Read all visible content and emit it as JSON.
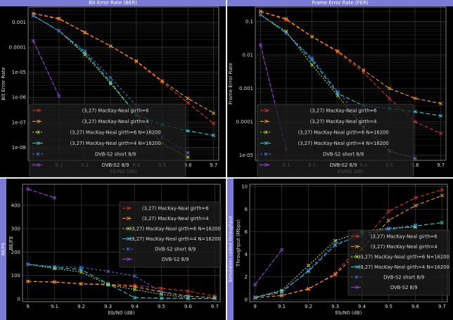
{
  "panels": [
    {
      "title": "Bit Error Rate (BER)",
      "side_label": ""
    },
    {
      "title": "Frame Error Rate (FER)",
      "side_label": ""
    },
    {
      "title": "",
      "side_label": "BE/FE"
    },
    {
      "title": "",
      "side_label": "Simulation coded throughput"
    }
  ],
  "colors": {
    "panel_bg": "#000000",
    "title_bar": "#7b7bd6",
    "grid": "#3a3a3a",
    "text": "#d8d8d8"
  },
  "chart_data": [
    {
      "type": "line",
      "title": "Bit Error Rate (BER)",
      "xlabel": "Eb/N0 (dB)",
      "ylabel": "Bit Error Rate",
      "yscale": "log",
      "xlim": [
        8.98,
        9.72
      ],
      "ylim": [
        3e-09,
        0.004
      ],
      "xticks": [
        9,
        9.1,
        9.2,
        9.3,
        9.4,
        9.5,
        9.6,
        9.7
      ],
      "xtick_labels": [
        "9",
        "9.1",
        "9.2",
        "9.3",
        "9.4",
        "9.5",
        "9.6",
        "9.7"
      ],
      "yticks": [
        1e-08,
        1e-07,
        1e-06,
        1e-05,
        0.0001,
        0.001
      ],
      "ytick_labels": [
        "1e-08",
        "1e-07",
        "1e-06",
        "1e-05",
        "0.0001",
        "0.001"
      ],
      "grid": true,
      "legend_position": "bottom-center",
      "series": [
        {
          "name": "(3,27) MacKay-Neal girth=6",
          "color": "#e0302a",
          "x": [
            9,
            9.1,
            9.2,
            9.3,
            9.4,
            9.5,
            9.6,
            9.7
          ],
          "y": [
            0.0022,
            0.0013,
            0.0004,
            0.00011,
            2.6e-05,
            4e-06,
            6e-07,
            9e-08
          ]
        },
        {
          "name": "(3,27) MacKay-Neal girth=4",
          "color": "#f0a020",
          "x": [
            9,
            9.1,
            9.2,
            9.3,
            9.4,
            9.5,
            9.6,
            9.7
          ],
          "y": [
            0.0022,
            0.0014,
            0.00038,
            0.00011,
            2.8e-05,
            4.5e-06,
            9e-07,
            2.3e-07
          ]
        },
        {
          "name": "(3,27) MacKay-Neal girth=6 N=16200",
          "color": "#b8e030",
          "x": [
            9,
            9.1,
            9.2,
            9.3,
            9.4,
            9.5,
            9.6
          ],
          "y": [
            0.0018,
            0.00045,
            5e-05,
            3.5e-06,
            2e-07,
            1.4e-08,
            4e-09
          ]
        },
        {
          "name": "(3,27) MacKay-Neal girth=4 N=16200",
          "color": "#20d0d0",
          "x": [
            9,
            9.1,
            9.2,
            9.3,
            9.4,
            9.5,
            9.6,
            9.7
          ],
          "y": [
            0.0018,
            0.00045,
            6e-05,
            4e-06,
            2e-07,
            8e-08,
            4.5e-08,
            3e-08
          ]
        },
        {
          "name": "DVB-S2 short 8/9",
          "color": "#4a6ee0",
          "x": [
            9,
            9.1,
            9.2,
            9.3,
            9.4,
            9.5,
            9.6
          ],
          "y": [
            0.0018,
            0.00045,
            7e-05,
            6e-06,
            4.5e-07,
            2.5e-08,
            6e-09
          ]
        },
        {
          "name": "DVB-S2 8/9",
          "color": "#9a40e0",
          "x": [
            9,
            9.1
          ],
          "y": [
            0.00018,
            1.1e-06
          ]
        }
      ]
    },
    {
      "type": "line",
      "title": "Frame Error Rate (FER)",
      "xlabel": "Eb/N0 (dB)",
      "ylabel": "Frame Error Rate",
      "yscale": "log",
      "xlim": [
        8.98,
        9.72
      ],
      "ylim": [
        7e-06,
        0.27
      ],
      "xticks": [
        9,
        9.1,
        9.2,
        9.3,
        9.4,
        9.5,
        9.6,
        9.7
      ],
      "xtick_labels": [
        "9",
        "9.1",
        "9.2",
        "9.3",
        "9.4",
        "9.5",
        "9.6",
        "9.7"
      ],
      "yticks": [
        1e-05,
        0.0001,
        0.001,
        0.01,
        0.1
      ],
      "ytick_labels": [
        "1e-05",
        "0.0001",
        "0.001",
        "0.01",
        "0.1"
      ],
      "grid": true,
      "legend_position": "bottom-center",
      "series": [
        {
          "name": "(3,27) MacKay-Neal girth=6",
          "color": "#e0302a",
          "x": [
            9,
            9.1,
            9.2,
            9.3,
            9.4,
            9.5,
            9.6,
            9.7
          ],
          "y": [
            0.2,
            0.11,
            0.035,
            0.012,
            0.003,
            0.0005,
            0.0001,
            4.5e-05
          ]
        },
        {
          "name": "(3,27) MacKay-Neal girth=4",
          "color": "#f0a020",
          "x": [
            9,
            9.1,
            9.2,
            9.3,
            9.4,
            9.5,
            9.6,
            9.7
          ],
          "y": [
            0.2,
            0.12,
            0.035,
            0.013,
            0.0035,
            0.001,
            0.0005,
            0.00035
          ]
        },
        {
          "name": "(3,27) MacKay-Neal girth=6 N=16200",
          "color": "#b8e030",
          "x": [
            9,
            9.1,
            9.2,
            9.3,
            9.4,
            9.5,
            9.6
          ],
          "y": [
            0.16,
            0.05,
            0.005,
            0.0006,
            7e-05,
            1.3e-05,
            8e-06
          ]
        },
        {
          "name": "(3,27) MacKay-Neal girth=4 N=16200",
          "color": "#20d0d0",
          "x": [
            9,
            9.1,
            9.2,
            9.3,
            9.4,
            9.5,
            9.6,
            9.7
          ],
          "y": [
            0.16,
            0.045,
            0.007,
            0.0007,
            0.0003,
            0.00025,
            0.0002,
            0.00015
          ]
        },
        {
          "name": "DVB-S2 short 8/9",
          "color": "#4a6ee0",
          "x": [
            9,
            9.1,
            9.2,
            9.3,
            9.4,
            9.5,
            9.6
          ],
          "y": [
            0.16,
            0.045,
            0.008,
            0.0008,
            0.0001,
            1.4e-05,
            8e-06
          ]
        },
        {
          "name": "DVB-S2 8/9",
          "color": "#9a40e0",
          "x": [
            9,
            9.1
          ],
          "y": [
            0.02,
            1.5e-05
          ]
        }
      ]
    },
    {
      "type": "line",
      "title": "",
      "xlabel": "Eb/N0 (dB)",
      "ylabel": "BE/FE",
      "yscale": "linear",
      "xlim": [
        8.98,
        9.72
      ],
      "ylim": [
        -12,
        490
      ],
      "xticks": [
        9,
        9.1,
        9.2,
        9.3,
        9.4,
        9.5,
        9.6,
        9.7
      ],
      "xtick_labels": [
        "9",
        "9.1",
        "9.2",
        "9.3",
        "9.4",
        "9.5",
        "9.6",
        "9.7"
      ],
      "yticks": [
        0,
        100,
        200,
        300,
        400
      ],
      "ytick_labels": [
        "0",
        "100",
        "200",
        "300",
        "400"
      ],
      "grid": true,
      "legend_position": "top-right",
      "series": [
        {
          "name": "(3,27) MacKay-Neal girth=6",
          "color": "#e0302a",
          "x": [
            9,
            9.1,
            9.2,
            9.3,
            9.4,
            9.5,
            9.6,
            9.7
          ],
          "y": [
            75,
            73,
            65,
            63,
            58,
            45,
            33,
            12
          ]
        },
        {
          "name": "(3,27) MacKay-Neal girth=4",
          "color": "#f0a020",
          "x": [
            9,
            9.1,
            9.2,
            9.3,
            9.4,
            9.5,
            9.6,
            9.7
          ],
          "y": [
            75,
            72,
            64,
            60,
            52,
            30,
            12,
            5
          ]
        },
        {
          "name": "(3,27) MacKay-Neal girth=6 N=16200",
          "color": "#b8e030",
          "x": [
            9,
            9.1,
            9.2,
            9.3,
            9.4,
            9.5,
            9.6
          ],
          "y": [
            148,
            130,
            115,
            60,
            40,
            20,
            5
          ]
        },
        {
          "name": "(3,27) MacKay-Neal girth=4 N=16200",
          "color": "#20d0d0",
          "x": [
            9,
            9.1,
            9.2,
            9.3,
            9.4,
            9.5,
            9.6,
            9.7
          ],
          "y": [
            148,
            135,
            125,
            65,
            5,
            3,
            2,
            2
          ]
        },
        {
          "name": "DVB-S2 short 8/9",
          "color": "#4a6ee0",
          "x": [
            9,
            9.1,
            9.2,
            9.3,
            9.4,
            9.5,
            9.6
          ],
          "y": [
            148,
            138,
            135,
            118,
            98,
            30,
            8
          ]
        },
        {
          "name": "DVB-S2 8/9",
          "color": "#9a40e0",
          "x": [
            9,
            9.1
          ],
          "y": [
            470,
            432
          ]
        }
      ]
    },
    {
      "type": "line",
      "title": "",
      "xlabel": "Eb/N0 (dB)",
      "ylabel": "Throughput (Mbps)",
      "yscale": "linear",
      "xlim": [
        8.98,
        9.72
      ],
      "ylim": [
        -0.2,
        10.2
      ],
      "xticks": [
        9,
        9.1,
        9.2,
        9.3,
        9.4,
        9.5,
        9.6,
        9.7
      ],
      "xtick_labels": [
        "9",
        "9.1",
        "9.2",
        "9.3",
        "9.4",
        "9.5",
        "9.6",
        "9.7"
      ],
      "yticks": [
        0,
        2,
        4,
        6,
        8,
        10
      ],
      "ytick_labels": [
        "0",
        "2",
        "4",
        "6",
        "8",
        "10"
      ],
      "grid": true,
      "legend_position": "center-right",
      "series": [
        {
          "name": "(3,27) MacKay-Neal girth=6",
          "color": "#e0302a",
          "x": [
            9,
            9.1,
            9.2,
            9.3,
            9.4,
            9.5,
            9.6,
            9.7
          ],
          "y": [
            0.15,
            0.35,
            0.9,
            2.3,
            5.0,
            7.8,
            9.0,
            9.7
          ]
        },
        {
          "name": "(3,27) MacKay-Neal girth=4",
          "color": "#f0a020",
          "x": [
            9,
            9.1,
            9.2,
            9.3,
            9.4,
            9.5,
            9.6,
            9.7
          ],
          "y": [
            0.15,
            0.35,
            0.95,
            2.2,
            4.5,
            7.0,
            8.3,
            9.2
          ]
        },
        {
          "name": "(3,27) MacKay-Neal girth=6 N=16200",
          "color": "#b8e030",
          "x": [
            9,
            9.1,
            9.2,
            9.3,
            9.4,
            9.5,
            9.6
          ],
          "y": [
            0.2,
            0.8,
            3.0,
            5.2,
            6.0,
            6.3,
            6.4
          ]
        },
        {
          "name": "(3,27) MacKay-Neal girth=4 N=16200",
          "color": "#20d0d0",
          "x": [
            9,
            9.1,
            9.2,
            9.3,
            9.4,
            9.5,
            9.6,
            9.7
          ],
          "y": [
            0.2,
            0.7,
            2.5,
            4.8,
            5.8,
            6.2,
            6.5,
            6.8
          ]
        },
        {
          "name": "DVB-S2 short 8/9",
          "color": "#4a6ee0",
          "x": [
            9,
            9.1,
            9.2,
            9.3,
            9.4,
            9.5,
            9.6
          ],
          "y": [
            0.2,
            0.6,
            2.6,
            5.0,
            5.5,
            6.3,
            6.6
          ]
        },
        {
          "name": "DVB-S2 8/9",
          "color": "#9a40e0",
          "x": [
            9,
            9.1
          ],
          "y": [
            1.3,
            4.4
          ]
        }
      ]
    }
  ]
}
